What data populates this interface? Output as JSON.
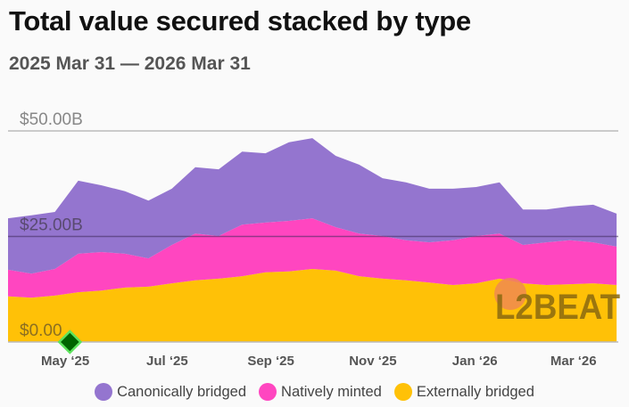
{
  "header": {
    "title": "Total value secured stacked by type",
    "subtitle": "2025 Mar 31 — 2026 Mar 31"
  },
  "watermark": "L2BEAT",
  "chart_data": {
    "type": "area",
    "stacked": true,
    "title": "Total value secured stacked by type",
    "subtitle": "2025 Mar 31 — 2026 Mar 31",
    "unit": "USD billions",
    "ylim": [
      0,
      50
    ],
    "yticks": [
      {
        "value": 0,
        "label": "$0.00"
      },
      {
        "value": 25,
        "label": "$25.00B"
      },
      {
        "value": 50,
        "label": "$50.00B"
      }
    ],
    "xlim": [
      "2025-03-31",
      "2026-03-31"
    ],
    "xticks": [
      {
        "date": "2025-05-01",
        "label": "May ‘25"
      },
      {
        "date": "2025-07-01",
        "label": "Jul ‘25"
      },
      {
        "date": "2025-09-01",
        "label": "Sep ‘25"
      },
      {
        "date": "2025-11-01",
        "label": "Nov ‘25"
      },
      {
        "date": "2026-01-01",
        "label": "Jan ‘26"
      },
      {
        "date": "2026-03-01",
        "label": "Mar ‘26"
      }
    ],
    "grid": true,
    "legend_position": "bottom",
    "x": [
      "2025-03-31",
      "2025-04-14",
      "2025-04-28",
      "2025-05-12",
      "2025-05-26",
      "2025-06-09",
      "2025-06-23",
      "2025-07-07",
      "2025-07-21",
      "2025-08-04",
      "2025-08-18",
      "2025-09-01",
      "2025-09-15",
      "2025-09-29",
      "2025-10-13",
      "2025-10-27",
      "2025-11-10",
      "2025-11-24",
      "2025-12-08",
      "2025-12-22",
      "2026-01-05",
      "2026-01-19",
      "2026-02-02",
      "2026-02-16",
      "2026-03-02",
      "2026-03-16",
      "2026-03-30"
    ],
    "series": [
      {
        "name": "Externally bridged",
        "color": "#FFC107",
        "values": [
          10.8,
          10.5,
          11.0,
          11.8,
          12.2,
          12.9,
          13.1,
          13.9,
          14.6,
          15.0,
          15.6,
          16.5,
          16.7,
          17.3,
          16.9,
          15.6,
          15.0,
          14.6,
          14.1,
          13.5,
          13.9,
          15.0,
          13.9,
          13.5,
          13.7,
          13.9,
          13.5
        ]
      },
      {
        "name": "Natively minted",
        "color": "#FF46C0",
        "values": [
          6.3,
          5.7,
          6.3,
          9.1,
          9.1,
          8.0,
          6.7,
          9.1,
          11.1,
          10.1,
          12.2,
          11.8,
          12.0,
          12.0,
          10.3,
          10.1,
          10.1,
          9.5,
          9.5,
          10.6,
          11.2,
          10.7,
          9.1,
          10.1,
          10.4,
          9.7,
          9.1
        ]
      },
      {
        "name": "Canonically bridged",
        "color": "#9475CF",
        "values": [
          12.2,
          13.8,
          13.5,
          17.3,
          15.8,
          14.8,
          13.7,
          13.3,
          15.7,
          15.8,
          17.3,
          16.4,
          18.6,
          19.0,
          16.9,
          16.3,
          13.7,
          13.7,
          12.7,
          12.2,
          11.6,
          12.1,
          8.4,
          7.8,
          8.0,
          8.9,
          7.8
        ]
      }
    ],
    "annotations": [
      {
        "type": "marker",
        "shape": "diamond",
        "date": "2025-05-07",
        "value": 0,
        "color": "#006400"
      }
    ]
  },
  "legend": [
    {
      "label": "Canonically bridged",
      "color": "#9475CF"
    },
    {
      "label": "Natively minted",
      "color": "#FF46C0"
    },
    {
      "label": "Externally bridged",
      "color": "#FFC107"
    }
  ]
}
